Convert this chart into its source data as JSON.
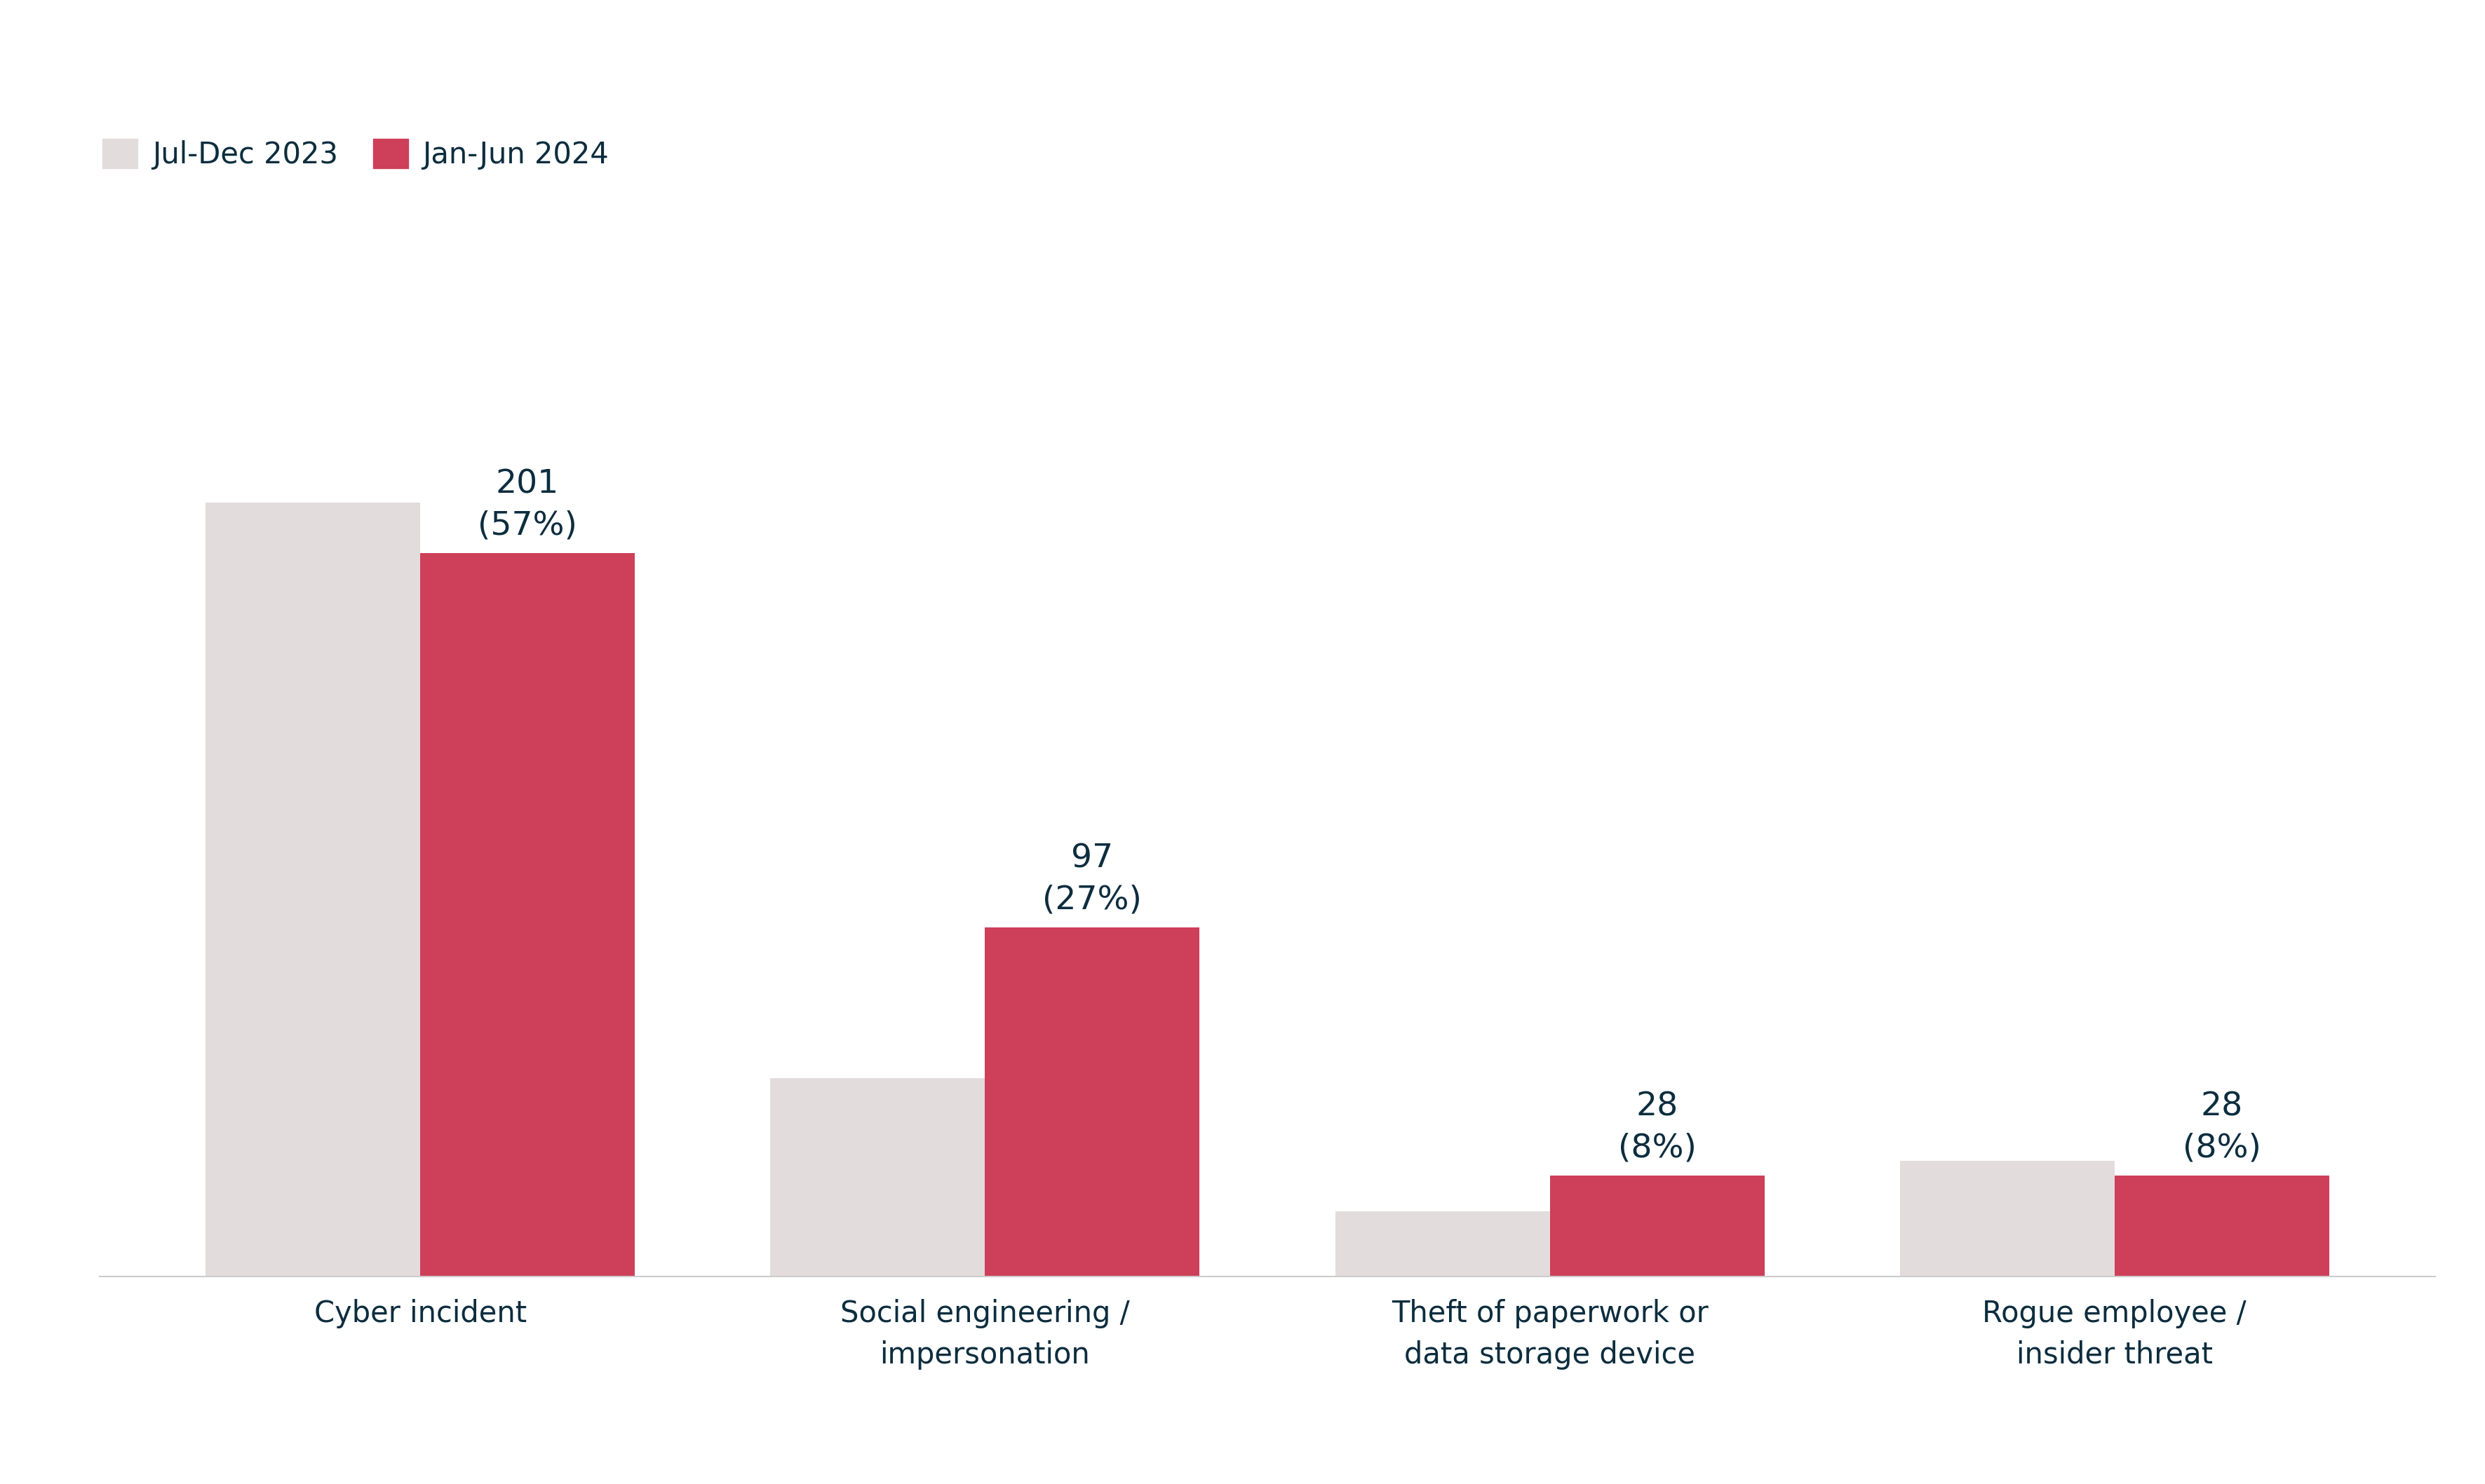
{
  "categories": [
    "Cyber incident",
    "Social engineering /\nimpersonation",
    "Theft of paperwork or\ndata storage device",
    "Rogue employee /\ninsider threat"
  ],
  "values_2023": [
    215,
    55,
    18,
    32
  ],
  "values_2024": [
    201,
    97,
    28,
    28
  ],
  "labels_2024": [
    "201\n(57%)",
    "97\n(27%)",
    "28\n(8%)",
    "28\n(8%)"
  ],
  "color_2023": "#E2DCDC",
  "color_2024": "#CE3F5A",
  "text_color": "#0D2D3E",
  "background_color": "#FFFFFF",
  "legend_label_2023": "Jul-Dec 2023",
  "legend_label_2024": "Jan-Jun 2024",
  "bar_width": 0.38,
  "tick_fontsize": 30,
  "legend_fontsize": 30,
  "annotation_fontsize": 34
}
